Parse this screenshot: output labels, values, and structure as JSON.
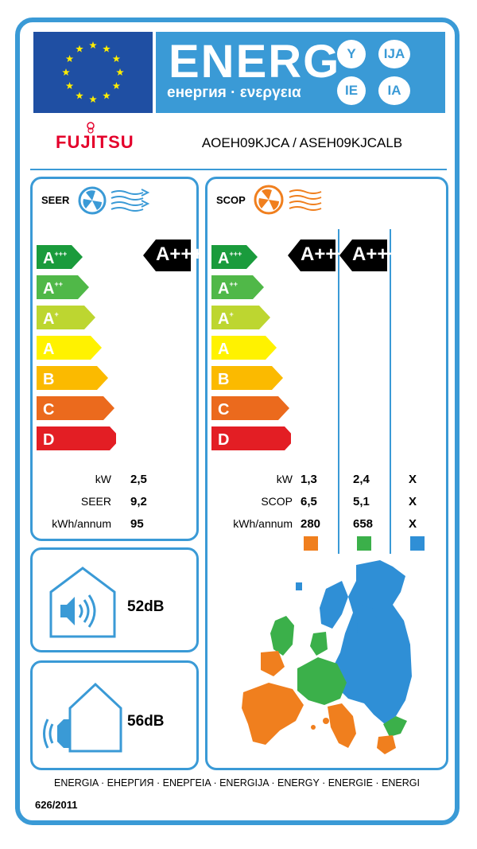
{
  "header": {
    "energy_word": "ENERG",
    "subtitle": "енергия · ενεργεια",
    "languages": [
      "Y",
      "IJA",
      "IE",
      "IA"
    ]
  },
  "brand": "FUJITSU",
  "model": "AOEH09KJCA / ASEH09KJCALB",
  "cooling": {
    "title": "SEER",
    "scale": [
      "A+++",
      "A++",
      "A+",
      "A",
      "B",
      "C",
      "D"
    ],
    "rating": "A+++",
    "rows": [
      {
        "label": "kW",
        "value": "2,5"
      },
      {
        "label": "SEER",
        "value": "9,2"
      },
      {
        "label": "kWh/annum",
        "value": "95"
      }
    ]
  },
  "heating": {
    "title": "SCOP",
    "scale": [
      "A+++",
      "A++",
      "A+",
      "A",
      "B",
      "C",
      "D"
    ],
    "ratings": [
      "A+++",
      "A+++",
      ""
    ],
    "labels": [
      "kW",
      "SCOP",
      "kWh/annum"
    ],
    "columns": [
      {
        "climate_color": "#f07f1e",
        "values": [
          "1,3",
          "6,5",
          "280"
        ]
      },
      {
        "climate_color": "#3bb04a",
        "values": [
          "2,4",
          "5,1",
          "658"
        ]
      },
      {
        "climate_color": "#2f8fd6",
        "values": [
          "X",
          "X",
          "X"
        ]
      }
    ]
  },
  "noise": {
    "indoor": "52dB",
    "outdoor": "56dB"
  },
  "footer": {
    "languages": "ENERGIA · ЕНЕРГИЯ · ΕΝΕΡΓΕΙΑ · ENERGIJA · ENERGY · ENERGIE · ENERGI",
    "regulation": "626/2011"
  },
  "colors": {
    "frame": "#3a9ad6",
    "eu_blue": "#1f4fa3",
    "brand_red": "#e4002b",
    "class_colors": [
      "#1a9b3c",
      "#50b848",
      "#bdd630",
      "#fff200",
      "#fbba00",
      "#eb6a1d",
      "#e31e24"
    ]
  }
}
